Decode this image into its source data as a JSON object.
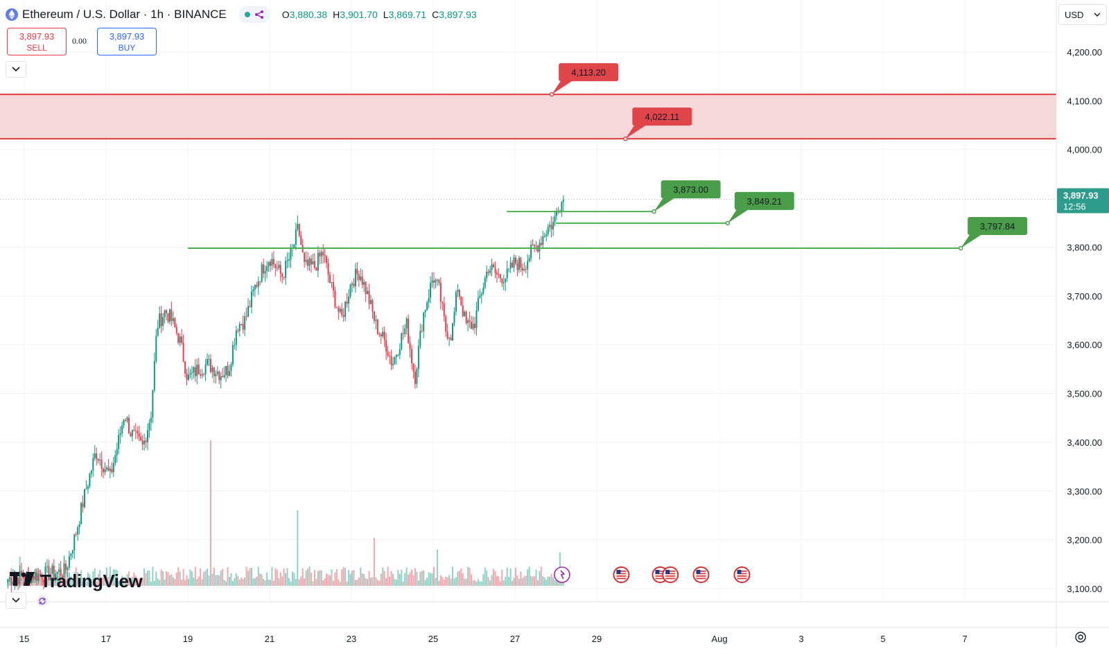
{
  "header": {
    "symbol_title": "Ethereum / U.S. Dollar · 1h · BINANCE",
    "ohlc": [
      {
        "key": "O",
        "value": "3,880.38"
      },
      {
        "key": "H",
        "value": "3,901.70"
      },
      {
        "key": "L",
        "value": "3,869.71"
      },
      {
        "key": "C",
        "value": "3,897.93"
      }
    ],
    "status_color": "#22ab94"
  },
  "trade": {
    "sell_price": "3,897.93",
    "sell_label": "SELL",
    "spread": "0.00",
    "buy_price": "3,897.93",
    "buy_label": "BUY"
  },
  "currency_select": "USD",
  "logo": "TradingView",
  "colors": {
    "up": "#089981",
    "down": "#f23645",
    "zone_fill": "#f7d9dc",
    "zone_line": "#e03b3b",
    "level_line": "#4caf50",
    "green_label": "#4a9e4a",
    "red_label": "#e0454a",
    "price_label": "#2e9c8d"
  },
  "chart_data": {
    "type": "candlestick",
    "symbol": "ETHUSD",
    "timeframe": "1h",
    "y_ticks": [
      "4,200.00",
      "4,100.00",
      "4,000.00",
      "3,800.00",
      "3,700.00",
      "3,600.00",
      "3,500.00",
      "3,400.00",
      "3,300.00",
      "3,200.00",
      "3,100.00"
    ],
    "y_tick_values": [
      4200,
      4100,
      4000,
      3800,
      3700,
      3600,
      3500,
      3400,
      3300,
      3200,
      3100
    ],
    "ylim": [
      3085,
      4300
    ],
    "x_ticks": [
      {
        "label": "15",
        "day": 15
      },
      {
        "label": "17",
        "day": 17
      },
      {
        "label": "19",
        "day": 19
      },
      {
        "label": "21",
        "day": 21
      },
      {
        "label": "23",
        "day": 23
      },
      {
        "label": "25",
        "day": 25
      },
      {
        "label": "27",
        "day": 27
      },
      {
        "label": "29",
        "day": 29
      },
      {
        "label": "Aug",
        "day": 32
      },
      {
        "label": "3",
        "day": 34
      },
      {
        "label": "5",
        "day": 36
      },
      {
        "label": "7",
        "day": 38
      }
    ],
    "anchors_day_close": [
      [
        14.6,
        3120
      ],
      [
        16.0,
        3135
      ],
      [
        16.25,
        3210
      ],
      [
        16.5,
        3300
      ],
      [
        16.75,
        3380
      ],
      [
        17.1,
        3330
      ],
      [
        17.3,
        3400
      ],
      [
        17.45,
        3460
      ],
      [
        17.6,
        3420
      ],
      [
        17.9,
        3390
      ],
      [
        18.1,
        3460
      ],
      [
        18.25,
        3640
      ],
      [
        18.45,
        3670
      ],
      [
        18.6,
        3650
      ],
      [
        18.8,
        3610
      ],
      [
        19.0,
        3530
      ],
      [
        19.25,
        3550
      ],
      [
        19.5,
        3560
      ],
      [
        19.8,
        3540
      ],
      [
        20.0,
        3550
      ],
      [
        20.2,
        3640
      ],
      [
        20.4,
        3650
      ],
      [
        20.65,
        3720
      ],
      [
        20.85,
        3760
      ],
      [
        21.0,
        3780
      ],
      [
        21.3,
        3740
      ],
      [
        21.55,
        3790
      ],
      [
        21.7,
        3840
      ],
      [
        21.85,
        3760
      ],
      [
        22.1,
        3760
      ],
      [
        22.3,
        3790
      ],
      [
        22.5,
        3720
      ],
      [
        22.75,
        3650
      ],
      [
        23.0,
        3730
      ],
      [
        23.2,
        3750
      ],
      [
        23.4,
        3700
      ],
      [
        23.6,
        3640
      ],
      [
        23.85,
        3600
      ],
      [
        24.0,
        3560
      ],
      [
        24.2,
        3610
      ],
      [
        24.35,
        3640
      ],
      [
        24.55,
        3530
      ],
      [
        24.75,
        3660
      ],
      [
        25.0,
        3740
      ],
      [
        25.15,
        3710
      ],
      [
        25.3,
        3630
      ],
      [
        25.45,
        3620
      ],
      [
        25.6,
        3720
      ],
      [
        25.8,
        3640
      ],
      [
        26.0,
        3640
      ],
      [
        26.15,
        3700
      ],
      [
        26.35,
        3760
      ],
      [
        26.6,
        3740
      ],
      [
        26.8,
        3740
      ],
      [
        27.0,
        3770
      ],
      [
        27.2,
        3760
      ],
      [
        27.4,
        3790
      ],
      [
        27.6,
        3810
      ],
      [
        27.8,
        3840
      ],
      [
        27.95,
        3850
      ],
      [
        28.05,
        3885
      ],
      [
        28.2,
        3897.93
      ]
    ],
    "volume_spikes": [
      {
        "day": 19.55,
        "rel": 1.0
      },
      {
        "day": 21.7,
        "rel": 0.52
      },
      {
        "day": 23.55,
        "rel": 0.33
      },
      {
        "day": 28.1,
        "rel": 0.23
      },
      {
        "day": 25.1,
        "rel": 0.25
      },
      {
        "day": 14.9,
        "rel": 0.2
      }
    ],
    "zone": {
      "top": 4113.2,
      "bottom": 4022.11,
      "from_day": 14.0,
      "to_day": 39.5
    },
    "horizontal_levels": [
      {
        "value": 3873.0,
        "from_day": 26.8,
        "to_day": 30.4
      },
      {
        "value": 3849.21,
        "from_day": 28.0,
        "to_day": 32.2
      },
      {
        "value": 3797.84,
        "from_day": 19.0,
        "to_day": 37.9
      }
    ],
    "callouts": [
      {
        "label": "4,113.20",
        "value": 4113.2,
        "anchor_day": 27.9,
        "kind": "red"
      },
      {
        "label": "4,022.11",
        "value": 4022.11,
        "anchor_day": 29.7,
        "kind": "red"
      },
      {
        "label": "3,873.00",
        "value": 3873.0,
        "anchor_day": 30.4,
        "kind": "green"
      },
      {
        "label": "3,849.21",
        "value": 3849.21,
        "anchor_day": 32.2,
        "kind": "green"
      },
      {
        "label": "3,797.84",
        "value": 3797.84,
        "anchor_day": 37.9,
        "kind": "green"
      }
    ],
    "last_price": {
      "value": 3897.93,
      "label": "3,897.93",
      "countdown": "12:56"
    },
    "event_markers": [
      {
        "day": 28.15,
        "icon": "ai-event-icon"
      },
      {
        "day": 29.6,
        "icon": "us-flag-icon"
      },
      {
        "day": 30.55,
        "icon": "us-flag-icon"
      },
      {
        "day": 30.8,
        "icon": "us-flag-icon"
      },
      {
        "day": 31.55,
        "icon": "us-flag-icon"
      },
      {
        "day": 32.55,
        "icon": "us-flag-icon"
      }
    ]
  }
}
